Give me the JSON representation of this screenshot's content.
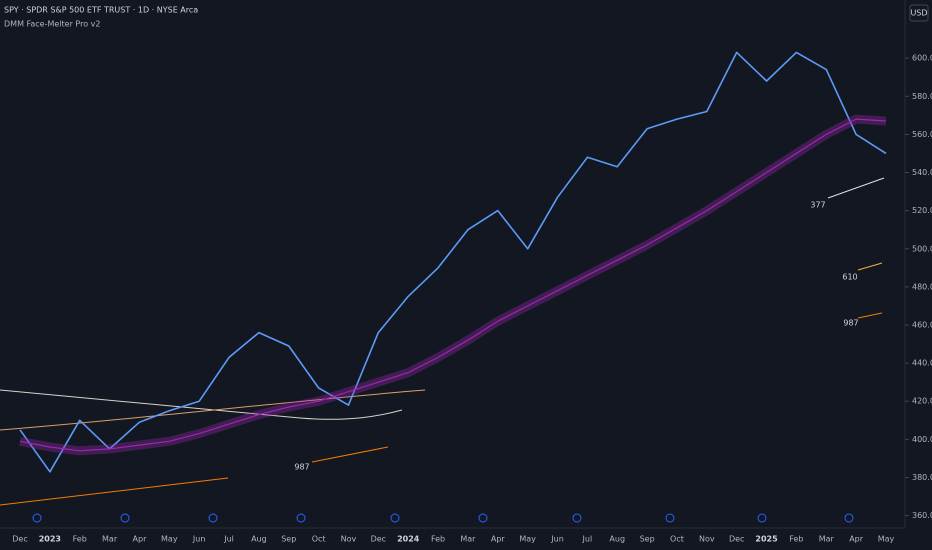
{
  "chart_data": {
    "type": "line",
    "title": "SPY · SPDR S&P 500 ETF TRUST · 1D · NYSE Arca",
    "subtitle": "DMM Face-Melter Pro v2",
    "currency": "USD",
    "categories": [
      "Dec",
      "2023",
      "Feb",
      "Mar",
      "Apr",
      "May",
      "Jun",
      "Jul",
      "Aug",
      "Sep",
      "Oct",
      "Nov",
      "Dec",
      "2024",
      "Feb",
      "Mar",
      "Apr",
      "May",
      "Jun",
      "Jul",
      "Aug",
      "Sep",
      "Oct",
      "Nov",
      "Dec",
      "2025",
      "Feb",
      "Mar",
      "Apr",
      "May"
    ],
    "series": [
      {
        "name": "Price",
        "color": "#5b9cf6",
        "values": [
          405,
          383,
          410,
          395,
          409,
          415,
          420,
          443,
          456,
          449,
          427,
          418,
          456,
          475,
          490,
          510,
          520,
          500,
          527,
          548,
          543,
          563,
          568,
          572,
          603,
          588,
          603,
          594,
          560,
          550
        ]
      },
      {
        "name": "MA 200",
        "color": "#9c27b0",
        "values": [
          399,
          396,
          394,
          395,
          397,
          399,
          403,
          408,
          413,
          417,
          420,
          425,
          430,
          435,
          443,
          452,
          462,
          470,
          478,
          486,
          494,
          502,
          511,
          520,
          530,
          540,
          550,
          560,
          568,
          567
        ]
      }
    ],
    "annotations": [
      "987",
      "377",
      "610",
      "987"
    ],
    "ylim": [
      353.5,
      630.5
    ],
    "yticks": [
      {
        "value": 360,
        "label": "360.00"
      },
      {
        "value": 380,
        "label": "380.00"
      },
      {
        "value": 400,
        "label": "400.00"
      },
      {
        "value": 420,
        "label": "420.00"
      },
      {
        "value": 440,
        "label": "440.00"
      },
      {
        "value": 460,
        "label": "460.00"
      },
      {
        "value": 480,
        "label": "480.00"
      },
      {
        "value": 500,
        "label": "500.00"
      },
      {
        "value": 520,
        "label": "520.00"
      },
      {
        "value": 540,
        "label": "540.00"
      },
      {
        "value": 560,
        "label": "560.00"
      },
      {
        "value": 580,
        "label": "580.00"
      },
      {
        "value": 600,
        "label": "600.00"
      }
    ],
    "grid": false
  }
}
